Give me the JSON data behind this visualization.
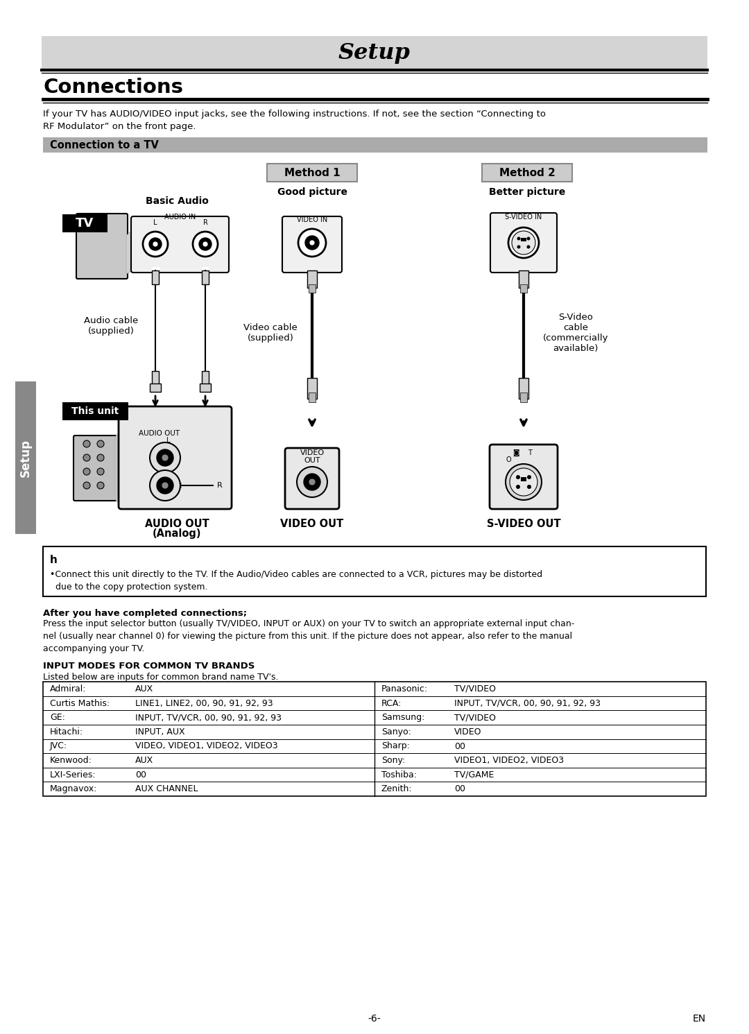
{
  "title": "Setup",
  "section_title": "Connections",
  "bg_color": "#ffffff",
  "title_bg": "#d4d4d4",
  "intro_text": "If your TV has AUDIO/VIDEO input jacks, see the following instructions. If not, see the section “Connecting to\nRF Modulator” on the front page.",
  "connection_header": "Connection to a TV",
  "connection_header_bg": "#aaaaaa",
  "method1_label": "Method 1",
  "method1_sub": "Good picture",
  "method2_label": "Method 2",
  "method2_sub": "Better picture",
  "basic_audio_label": "Basic Audio",
  "audio_out_label": "AUDIO OUT",
  "audio_out_label2": "(Analog)",
  "video_out_label": "VIDEO OUT",
  "svideo_out_label": "S-VIDEO OUT",
  "audio_cable_label": "Audio cable\n(supplied)",
  "video_cable_label": "Video cable\n(supplied)",
  "svideo_cable_label": "S-Video\ncable\n(commercially\navailable)",
  "tv_label": "TV",
  "this_unit_label": "This unit",
  "hint_icon": "h",
  "hint_text": "•Connect this unit directly to the TV. If the Audio/Video cables are connected to a VCR, pictures may be distorted\n  due to the copy protection system.",
  "after_title": "After you have completed connections;",
  "after_text": "Press the input selector button (usually TV/VIDEO, INPUT or AUX) on your TV to switch an appropriate external input chan-\nnel (usually near channel 0) for viewing the picture from this unit. If the picture does not appear, also refer to the manual\naccompanying your TV.",
  "input_modes_title": "INPUT MODES FOR COMMON TV BRANDS",
  "input_modes_sub": "Listed below are inputs for common brand name TV's.",
  "tv_brands_left": [
    [
      "Admiral:",
      "AUX"
    ],
    [
      "Curtis Mathis:",
      "LINE1, LINE2, 00, 90, 91, 92, 93"
    ],
    [
      "GE:",
      "INPUT, TV/VCR, 00, 90, 91, 92, 93"
    ],
    [
      "Hitachi:",
      "INPUT, AUX"
    ],
    [
      "JVC:",
      "VIDEO, VIDEO1, VIDEO2, VIDEO3"
    ],
    [
      "Kenwood:",
      "AUX"
    ],
    [
      "LXI-Series:",
      "00"
    ],
    [
      "Magnavox:",
      "AUX CHANNEL"
    ]
  ],
  "tv_brands_right": [
    [
      "Panasonic:",
      "TV/VIDEO"
    ],
    [
      "RCA:",
      "INPUT, TV/VCR, 00, 90, 91, 92, 93"
    ],
    [
      "Samsung:",
      "TV/VIDEO"
    ],
    [
      "Sanyo:",
      "VIDEO"
    ],
    [
      "Sharp:",
      "00"
    ],
    [
      "Sony:",
      "VIDEO1, VIDEO2, VIDEO3"
    ],
    [
      "Toshiba:",
      "TV/GAME"
    ],
    [
      "Zenith:",
      "00"
    ]
  ],
  "page_num": "-6-",
  "page_lang": "EN",
  "setup_side_label": "Setup"
}
